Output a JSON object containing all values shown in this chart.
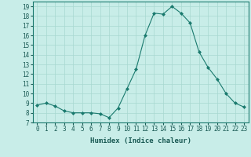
{
  "x": [
    0,
    1,
    2,
    3,
    4,
    5,
    6,
    7,
    8,
    9,
    10,
    11,
    12,
    13,
    14,
    15,
    16,
    17,
    18,
    19,
    20,
    21,
    22,
    23
  ],
  "y": [
    8.8,
    9.0,
    8.7,
    8.2,
    8.0,
    8.0,
    8.0,
    7.9,
    7.5,
    8.5,
    10.5,
    12.5,
    16.0,
    18.3,
    18.2,
    19.0,
    18.3,
    17.3,
    14.3,
    12.7,
    11.5,
    10.0,
    9.0,
    8.6
  ],
  "line_color": "#1a7a6e",
  "marker": "D",
  "marker_size": 2,
  "bg_color": "#c8ede8",
  "grid_color": "#a8d8d0",
  "xlabel": "Humidex (Indice chaleur)",
  "ylim": [
    7,
    19.5
  ],
  "xlim": [
    -0.5,
    23.5
  ],
  "yticks": [
    7,
    8,
    9,
    10,
    11,
    12,
    13,
    14,
    15,
    16,
    17,
    18,
    19
  ],
  "xticks": [
    0,
    1,
    2,
    3,
    4,
    5,
    6,
    7,
    8,
    9,
    10,
    11,
    12,
    13,
    14,
    15,
    16,
    17,
    18,
    19,
    20,
    21,
    22,
    23
  ],
  "label_fontsize": 6.5,
  "tick_fontsize": 5.5
}
